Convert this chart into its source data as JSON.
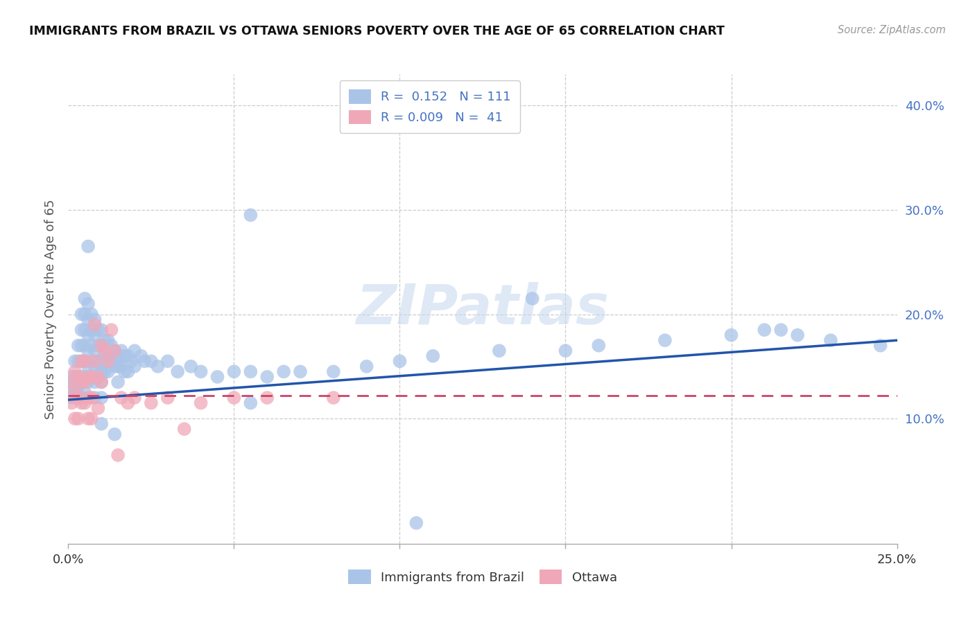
{
  "title": "IMMIGRANTS FROM BRAZIL VS OTTAWA SENIORS POVERTY OVER THE AGE OF 65 CORRELATION CHART",
  "source": "Source: ZipAtlas.com",
  "ylabel": "Seniors Poverty Over the Age of 65",
  "legend_brazil_R": "0.152",
  "legend_brazil_N": "111",
  "legend_ottawa_R": "0.009",
  "legend_ottawa_N": "41",
  "color_brazil": "#aac4e8",
  "color_ottawa": "#f0a8b8",
  "trendline_brazil_color": "#2255aa",
  "trendline_ottawa_color": "#cc4466",
  "watermark": "ZIPatlas",
  "xlim": [
    0.0,
    0.25
  ],
  "ylim": [
    -0.02,
    0.43
  ],
  "ytick_vals": [
    0.0,
    0.1,
    0.2,
    0.3,
    0.4
  ],
  "ytick_labels": [
    "",
    "10.0%",
    "20.0%",
    "30.0%",
    "40.0%"
  ],
  "brazil_x": [
    0.001,
    0.001,
    0.001,
    0.002,
    0.002,
    0.002,
    0.002,
    0.003,
    0.003,
    0.003,
    0.003,
    0.003,
    0.004,
    0.004,
    0.004,
    0.004,
    0.004,
    0.004,
    0.005,
    0.005,
    0.005,
    0.005,
    0.005,
    0.005,
    0.005,
    0.006,
    0.006,
    0.006,
    0.006,
    0.006,
    0.006,
    0.007,
    0.007,
    0.007,
    0.007,
    0.007,
    0.008,
    0.008,
    0.008,
    0.008,
    0.008,
    0.008,
    0.009,
    0.009,
    0.009,
    0.009,
    0.01,
    0.01,
    0.01,
    0.01,
    0.01,
    0.01,
    0.011,
    0.011,
    0.011,
    0.012,
    0.012,
    0.012,
    0.013,
    0.013,
    0.014,
    0.014,
    0.015,
    0.015,
    0.015,
    0.016,
    0.016,
    0.017,
    0.017,
    0.018,
    0.018,
    0.019,
    0.02,
    0.02,
    0.022,
    0.023,
    0.025,
    0.027,
    0.03,
    0.033,
    0.037,
    0.04,
    0.045,
    0.05,
    0.055,
    0.06,
    0.065,
    0.07,
    0.08,
    0.09,
    0.1,
    0.11,
    0.13,
    0.15,
    0.16,
    0.18,
    0.2,
    0.21,
    0.22,
    0.23,
    0.245,
    0.006,
    0.01,
    0.015,
    0.055,
    0.01,
    0.014,
    0.055,
    0.105,
    0.14,
    0.215
  ],
  "brazil_y": [
    0.14,
    0.13,
    0.12,
    0.155,
    0.14,
    0.13,
    0.12,
    0.17,
    0.155,
    0.14,
    0.13,
    0.12,
    0.2,
    0.185,
    0.17,
    0.155,
    0.14,
    0.12,
    0.215,
    0.2,
    0.185,
    0.17,
    0.155,
    0.14,
    0.125,
    0.21,
    0.195,
    0.18,
    0.165,
    0.15,
    0.135,
    0.2,
    0.185,
    0.17,
    0.155,
    0.14,
    0.195,
    0.18,
    0.165,
    0.15,
    0.135,
    0.12,
    0.185,
    0.17,
    0.155,
    0.14,
    0.185,
    0.17,
    0.155,
    0.145,
    0.135,
    0.12,
    0.175,
    0.16,
    0.145,
    0.175,
    0.16,
    0.145,
    0.17,
    0.155,
    0.165,
    0.15,
    0.16,
    0.15,
    0.135,
    0.165,
    0.15,
    0.16,
    0.145,
    0.16,
    0.145,
    0.155,
    0.165,
    0.15,
    0.16,
    0.155,
    0.155,
    0.15,
    0.155,
    0.145,
    0.15,
    0.145,
    0.14,
    0.145,
    0.145,
    0.14,
    0.145,
    0.145,
    0.145,
    0.15,
    0.155,
    0.16,
    0.165,
    0.165,
    0.17,
    0.175,
    0.18,
    0.185,
    0.18,
    0.175,
    0.17,
    0.265,
    0.145,
    0.155,
    0.295,
    0.095,
    0.085,
    0.115,
    0.0,
    0.215,
    0.185
  ],
  "ottawa_x": [
    0.001,
    0.001,
    0.002,
    0.002,
    0.002,
    0.003,
    0.003,
    0.003,
    0.004,
    0.004,
    0.004,
    0.005,
    0.005,
    0.005,
    0.006,
    0.006,
    0.006,
    0.007,
    0.007,
    0.007,
    0.008,
    0.008,
    0.009,
    0.009,
    0.01,
    0.01,
    0.011,
    0.012,
    0.013,
    0.014,
    0.015,
    0.016,
    0.018,
    0.02,
    0.025,
    0.03,
    0.035,
    0.04,
    0.05,
    0.06,
    0.08
  ],
  "ottawa_y": [
    0.135,
    0.115,
    0.145,
    0.125,
    0.1,
    0.14,
    0.12,
    0.1,
    0.155,
    0.135,
    0.115,
    0.155,
    0.135,
    0.115,
    0.14,
    0.12,
    0.1,
    0.14,
    0.12,
    0.1,
    0.19,
    0.155,
    0.14,
    0.11,
    0.17,
    0.135,
    0.165,
    0.155,
    0.185,
    0.165,
    0.065,
    0.12,
    0.115,
    0.12,
    0.115,
    0.12,
    0.09,
    0.115,
    0.12,
    0.12,
    0.12
  ],
  "brazil_trendline_x0": 0.0,
  "brazil_trendline_y0": 0.118,
  "brazil_trendline_x1": 0.25,
  "brazil_trendline_y1": 0.175,
  "ottawa_trendline_x0": 0.0,
  "ottawa_trendline_y0": 0.122,
  "ottawa_trendline_x1": 0.25,
  "ottawa_trendline_y1": 0.122
}
